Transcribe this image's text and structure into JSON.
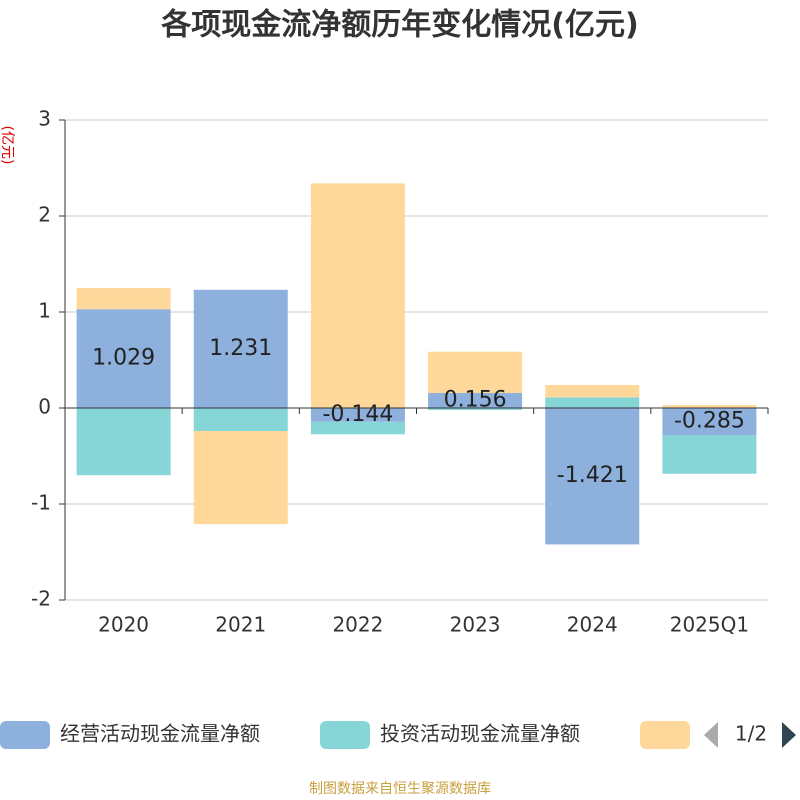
{
  "chart_data": {
    "type": "bar",
    "stacked": true,
    "title": "各项现金流净额历年变化情况(亿元)",
    "y_axis_label": "(亿元)",
    "categories": [
      "2020",
      "2021",
      "2022",
      "2023",
      "2024",
      "2025Q1"
    ],
    "series": [
      {
        "name": "经营活动现金流量净额",
        "color": "#8eb0dc",
        "values": [
          1.029,
          1.231,
          -0.144,
          0.156,
          -1.421,
          -0.285
        ],
        "show_labels": true
      },
      {
        "name": "投资活动现金流量净额",
        "color": "#86d6d8",
        "values": [
          -0.7,
          -0.24,
          -0.13,
          -0.02,
          0.11,
          -0.4
        ]
      },
      {
        "color": "#fdd89a",
        "values": [
          0.22,
          -0.97,
          2.34,
          0.43,
          0.13,
          0.03
        ]
      }
    ],
    "ylim": [
      -2,
      3
    ],
    "yticks": [
      -2,
      -1,
      0,
      1,
      2,
      3
    ],
    "grid": true,
    "legend_page": "1/2",
    "source": "制图数据来自恒生聚源数据库"
  }
}
